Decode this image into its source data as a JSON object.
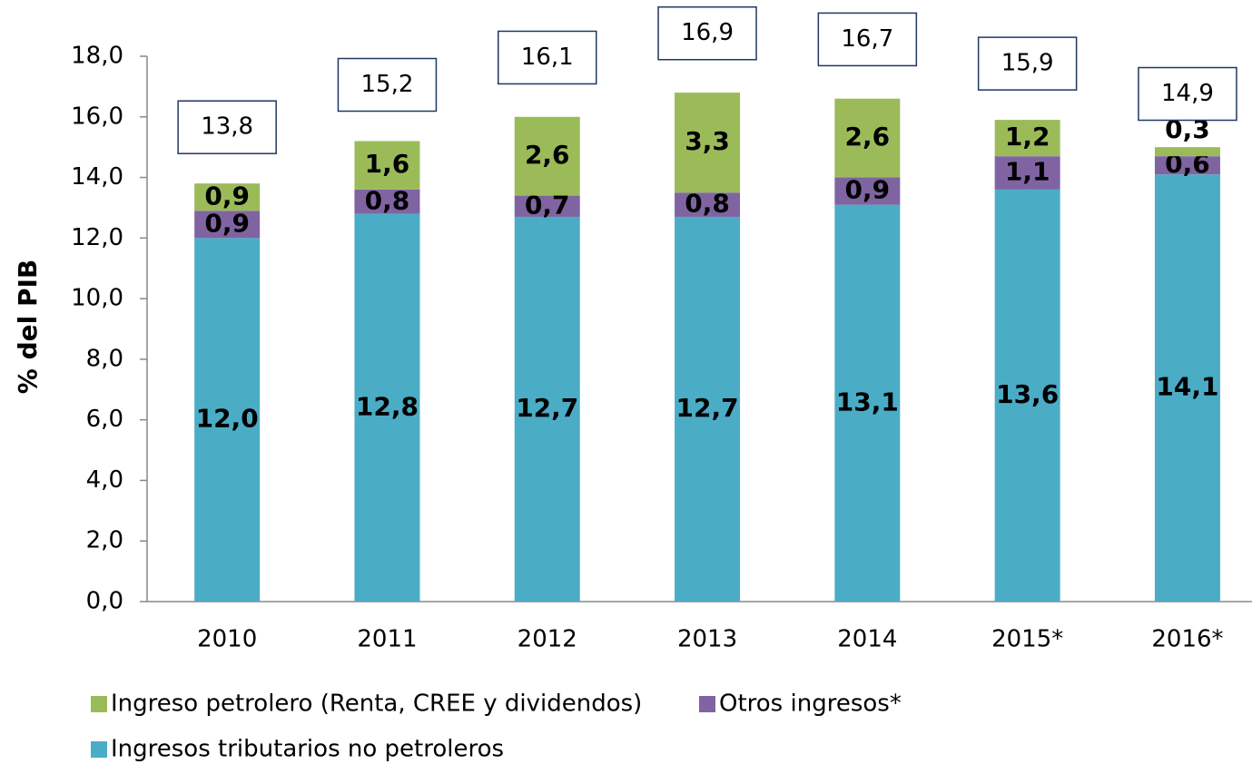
{
  "chart_data": {
    "type": "stacked-bar",
    "y_label": "% del PIB",
    "categories": [
      "2010",
      "2011",
      "2012",
      "2013",
      "2014",
      "2015*",
      "2016*"
    ],
    "series": [
      {
        "name": "Ingresos tributarios no petroleros",
        "color": "#4bacc6",
        "values": [
          12.0,
          12.8,
          12.7,
          12.7,
          13.1,
          13.6,
          14.1
        ],
        "value_labels": [
          "12,0",
          "12,8",
          "12,7",
          "12,7",
          "13,1",
          "13,6",
          "14,1"
        ]
      },
      {
        "name": "Otros ingresos*",
        "color": "#8064a2",
        "values": [
          0.9,
          0.8,
          0.7,
          0.8,
          0.9,
          1.1,
          0.6
        ],
        "value_labels": [
          "0,9",
          "0,8",
          "0,7",
          "0,8",
          "0,9",
          "1,1",
          "0,6"
        ]
      },
      {
        "name": "Ingreso petrolero (Renta, CREE y dividendos)",
        "color": "#9bbb59",
        "values": [
          0.9,
          1.6,
          2.6,
          3.3,
          2.6,
          1.2,
          0.3
        ],
        "value_labels": [
          "0,9",
          "1,6",
          "2,6",
          "3,3",
          "2,6",
          "1,2",
          "0,3"
        ]
      }
    ],
    "totals": [
      13.8,
      15.2,
      16.1,
      16.9,
      16.7,
      15.9,
      14.9
    ],
    "total_labels": [
      "13,8",
      "15,2",
      "16,1",
      "16,9",
      "16,7",
      "15,9",
      "14,9"
    ],
    "ylim": [
      0,
      18
    ],
    "yticks": [
      {
        "value": 0,
        "label": "0,0"
      },
      {
        "value": 2,
        "label": "2,0"
      },
      {
        "value": 4,
        "label": "4,0"
      },
      {
        "value": 6,
        "label": "6,0"
      },
      {
        "value": 8,
        "label": "8,0"
      },
      {
        "value": 10,
        "label": "10,0"
      },
      {
        "value": 12,
        "label": "12,0"
      },
      {
        "value": 14,
        "label": "14,0"
      },
      {
        "value": 16,
        "label": "16,0"
      },
      {
        "value": 18,
        "label": "18,0"
      }
    ],
    "grid": false
  }
}
